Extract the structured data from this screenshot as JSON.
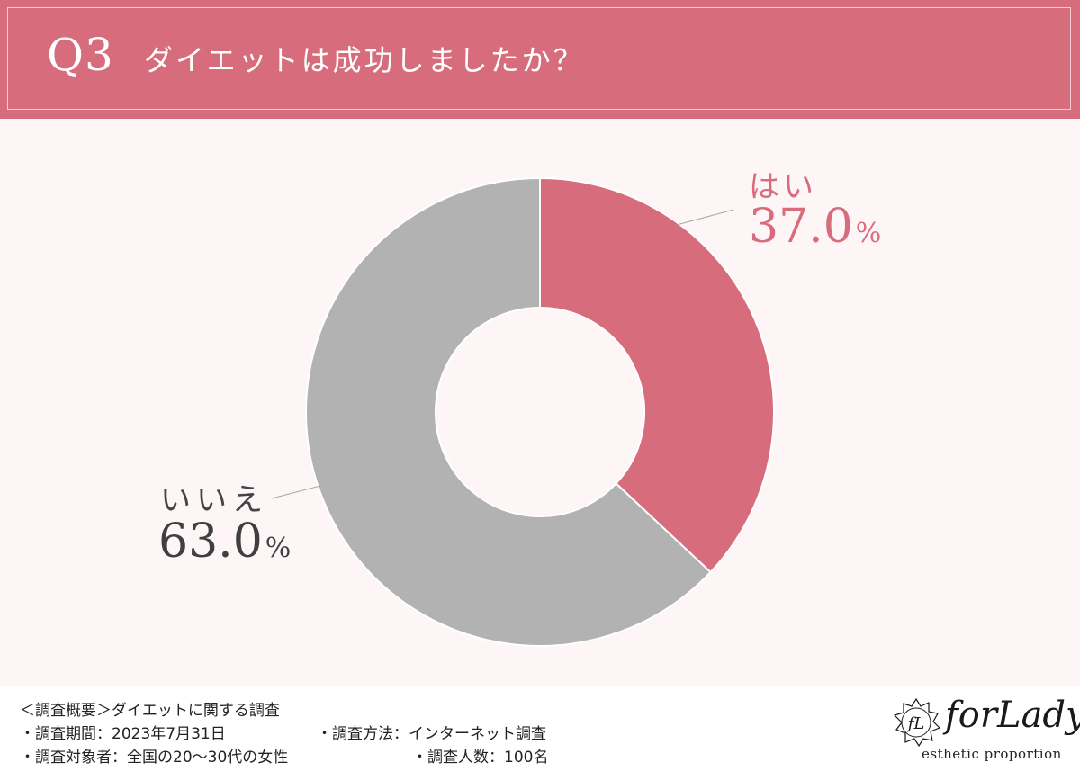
{
  "header": {
    "q_number": "Q3",
    "question": "ダイエットは成功しましたか？"
  },
  "colors": {
    "accent": "#d76c7d",
    "gray": "#b2b2b2",
    "background": "#fdf5f6"
  },
  "chart_data": {
    "type": "pie",
    "donut": true,
    "categories": [
      "はい",
      "いいえ"
    ],
    "values": [
      37.0,
      63.0
    ],
    "unit": "%",
    "colors": [
      "#d76c7d",
      "#b2b2b2"
    ],
    "labels": {
      "yes": {
        "name": "はい",
        "value": "37.0",
        "unit": "%"
      },
      "no": {
        "name": "いいえ",
        "value": "63.0",
        "unit": "%"
      }
    }
  },
  "footer": {
    "overview": "＜調査概要＞ダイエットに関する調査",
    "period": "・調査期間：2023年7月31日",
    "method": "・調査方法：インターネット調査",
    "target": "・調査対象者：全国の20〜30代の女性",
    "count": "・調査人数：100名"
  },
  "logo": {
    "monogram": "fL",
    "name": "forLady",
    "tagline": "esthetic  proportion"
  }
}
